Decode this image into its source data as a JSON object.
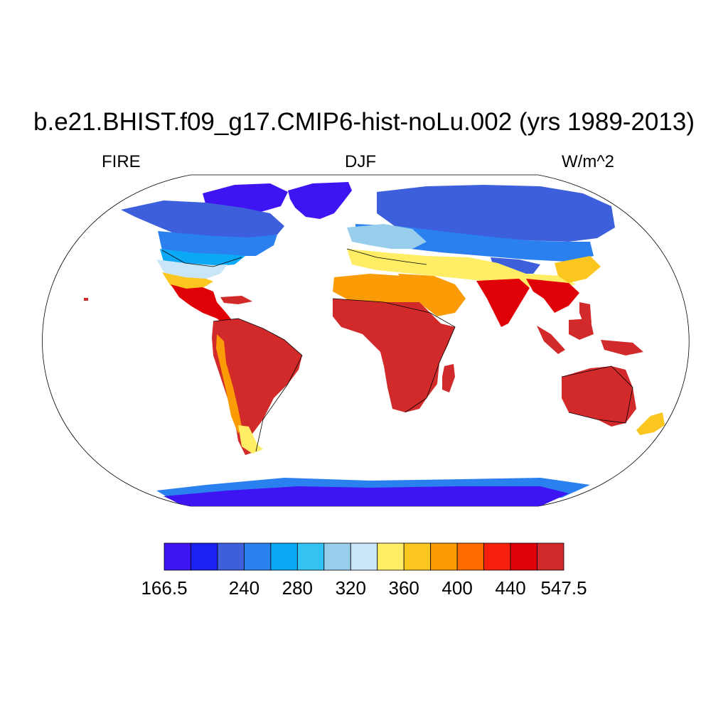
{
  "title": "b.e21.BHIST.f09_g17.CMIP6-hist-noLu.002 (yrs 1989-2013)",
  "left_label": "FIRE",
  "center_label": "DJF",
  "right_label": "W/m^2",
  "colorbar": {
    "colors": [
      "#3f14f2",
      "#1a21f0",
      "#3e5fdb",
      "#2b80f0",
      "#0ba8f5",
      "#34c2f2",
      "#98cdeb",
      "#c8e6f7",
      "#ffed66",
      "#fcc620",
      "#fb9b05",
      "#ff6a00",
      "#f8200c",
      "#e00007",
      "#d22a2a"
    ],
    "labels": [
      {
        "index": 0,
        "text": "166.5"
      },
      {
        "index": 3,
        "text": "240"
      },
      {
        "index": 5,
        "text": "280"
      },
      {
        "index": 7,
        "text": "320"
      },
      {
        "index": 9,
        "text": "360"
      },
      {
        "index": 11,
        "text": "400"
      },
      {
        "index": 13,
        "text": "440"
      },
      {
        "index": 15,
        "text": "547.5"
      }
    ]
  }
}
